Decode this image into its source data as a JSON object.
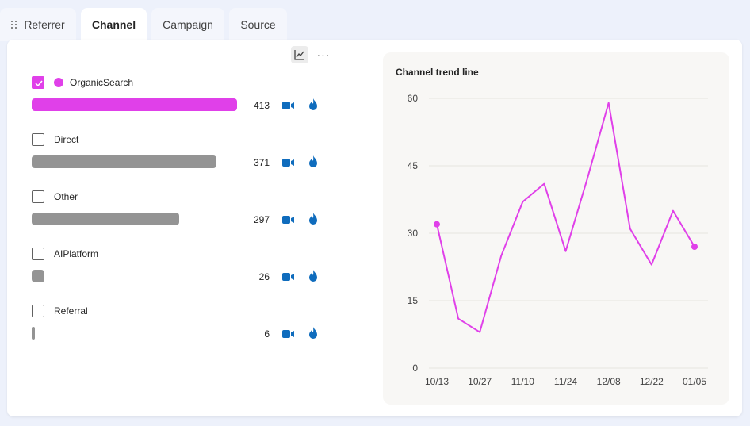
{
  "tabs": [
    {
      "label": "Referrer",
      "active": false
    },
    {
      "label": "Channel",
      "active": true
    },
    {
      "label": "Campaign",
      "active": false
    },
    {
      "label": "Source",
      "active": false
    }
  ],
  "toolbar": {
    "chart_icon": "chart-icon",
    "more_label": "···"
  },
  "accent_color": "#e040e9",
  "bar_color": "#949494",
  "channels": [
    {
      "label": "OrganicSearch",
      "count": "413",
      "value": 413,
      "checked": true
    },
    {
      "label": "Direct",
      "count": "371",
      "value": 371,
      "checked": false
    },
    {
      "label": "Other",
      "count": "297",
      "value": 297,
      "checked": false
    },
    {
      "label": "AIPlatform",
      "count": "26",
      "value": 26,
      "checked": false
    },
    {
      "label": "Referral",
      "count": "6",
      "value": 6,
      "checked": false
    }
  ],
  "chart_data": {
    "type": "line",
    "title": "Channel trend line",
    "xlabel": "",
    "ylabel": "",
    "ylim": [
      0,
      60
    ],
    "yticks": [
      0,
      15,
      30,
      45,
      60
    ],
    "xtick_labels": [
      "10/13",
      "10/27",
      "11/10",
      "11/24",
      "12/08",
      "12/22",
      "01/05"
    ],
    "x": [
      "10/13",
      "10/20",
      "10/27",
      "11/03",
      "11/10",
      "11/17",
      "11/24",
      "12/01",
      "12/08",
      "12/15",
      "12/22",
      "12/29",
      "01/05"
    ],
    "series": [
      {
        "color": "#e040e9",
        "values": [
          32,
          11,
          8,
          25,
          37,
          41,
          26,
          42,
          59,
          31,
          23,
          35,
          27
        ]
      }
    ],
    "grid": true,
    "legend": "none"
  }
}
